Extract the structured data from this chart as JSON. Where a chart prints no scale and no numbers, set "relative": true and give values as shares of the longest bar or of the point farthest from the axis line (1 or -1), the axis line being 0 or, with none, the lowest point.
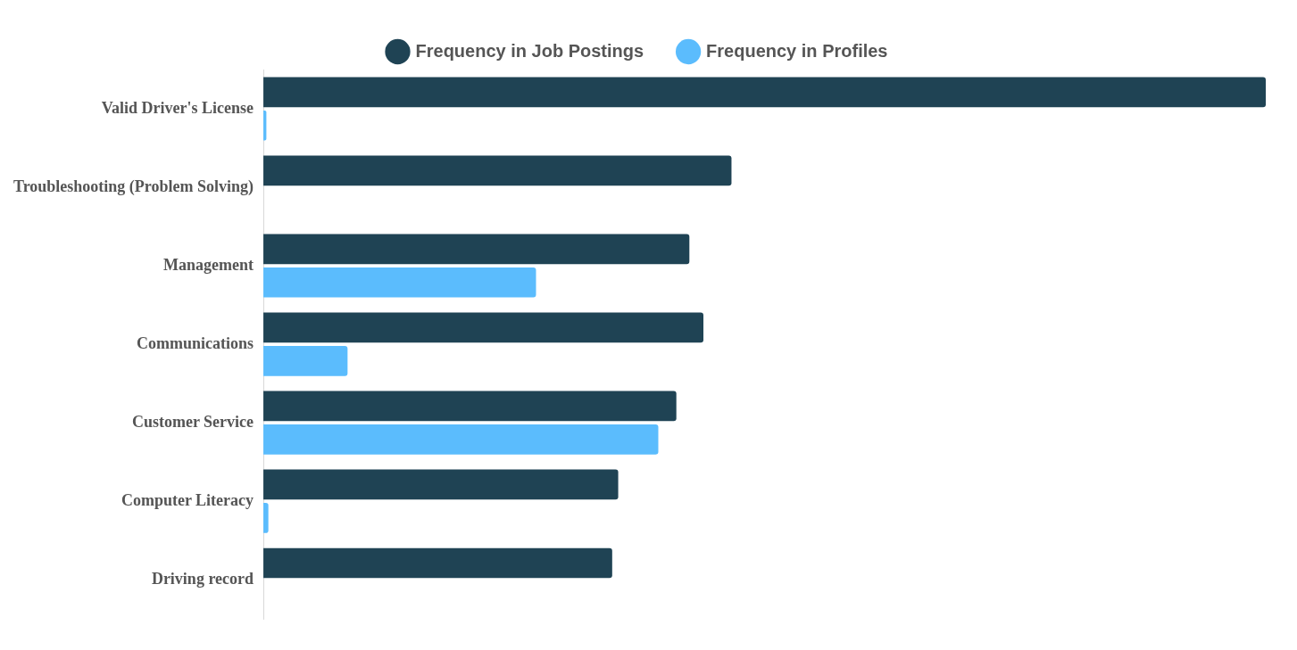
{
  "chart_data": {
    "type": "bar",
    "orientation": "horizontal",
    "relative": true,
    "legend": "top",
    "categories": [
      "Valid Driver's License",
      "Troubleshooting (Problem Solving)",
      "Management",
      "Communications",
      "Customer Service",
      "Computer Literacy",
      "Driving record"
    ],
    "series": [
      {
        "name": "Frequency in Job Postings",
        "color": "#1f4354",
        "values": [
          1,
          0.467,
          0.425,
          0.439,
          0.412,
          0.354,
          0.348
        ]
      },
      {
        "name": "Frequency in Profiles",
        "color": "#5bbcfd",
        "values": [
          0.003,
          null,
          0.272,
          0.084,
          0.394,
          0.005,
          null
        ]
      }
    ]
  }
}
